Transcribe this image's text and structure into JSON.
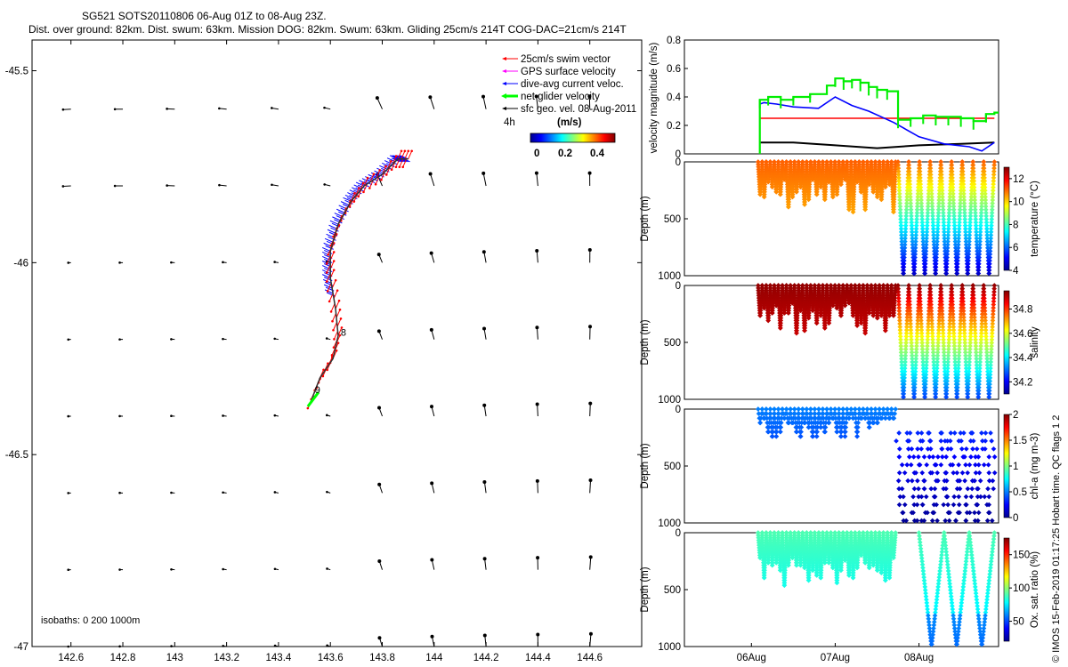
{
  "title": {
    "line1": "SG521 SOTS20110806 06-Aug 01Z to 08-Aug 23Z.",
    "line2": "Dist. over ground: 82km. Dist. swum: 63km. Mission DOG: 82km. Swum: 63km. Gliding 25cm/s 214T COG-DAC=21cm/s 214T"
  },
  "side_label": "© IMOS 15-Feb-2019 01:17:25 Hobart time. QC flags 1  2",
  "colors": {
    "swim": "#ff0000",
    "gps": "#ff00ff",
    "dac": "#0000ff",
    "net": "#00ff00",
    "sfc": "#000000"
  },
  "chart_data": [
    {
      "type": "scatter",
      "name": "map",
      "xlim": [
        142.45,
        144.8
      ],
      "ylim": [
        -47,
        -45.42
      ],
      "xticks": [
        142.6,
        142.8,
        143,
        143.2,
        143.4,
        143.6,
        143.8,
        144,
        144.2,
        144.4,
        144.6
      ],
      "xtick_labels": [
        "142.6",
        "142.8",
        "143",
        "143.2",
        "143.4",
        "143.6",
        "143.8",
        "144",
        "144.2",
        "144.4",
        "144.6"
      ],
      "yticks": [
        -45.5,
        -46,
        -46.5,
        -47
      ],
      "ytick_labels": [
        "-45.5",
        "-46",
        "-46.5",
        "-47"
      ],
      "legend": {
        "position": "top-right",
        "entries": [
          "25cm/s swim vector",
          "GPS surface velocity",
          "dive-avg current veloc.",
          "net glider velocity",
          "sfc geo. vel. 08-Aug-2011"
        ],
        "scale_label": "4h",
        "colorbar_title": "(m/s)",
        "colorbar_ticks": [
          "0",
          "0.2",
          "0.4"
        ],
        "colorbar_range": [
          0,
          0.5
        ]
      },
      "isobaths_label": "isobaths: 0   200  1000m",
      "track_labels": [
        {
          "text": "8",
          "lon": 143.64,
          "lat": -46.19
        },
        {
          "text": "9",
          "lon": 143.54,
          "lat": -46.34
        }
      ],
      "track": [
        {
          "lon": 143.52,
          "lat": -46.37
        },
        {
          "lon": 143.56,
          "lat": -46.3
        },
        {
          "lon": 143.61,
          "lat": -46.25
        },
        {
          "lon": 143.63,
          "lat": -46.19
        },
        {
          "lon": 143.62,
          "lat": -46.12
        },
        {
          "lon": 143.6,
          "lat": -46.04
        },
        {
          "lon": 143.6,
          "lat": -45.97
        },
        {
          "lon": 143.63,
          "lat": -45.9
        },
        {
          "lon": 143.68,
          "lat": -45.84
        },
        {
          "lon": 143.73,
          "lat": -45.8
        },
        {
          "lon": 143.8,
          "lat": -45.77
        },
        {
          "lon": 143.86,
          "lat": -45.73
        },
        {
          "lon": 143.9,
          "lat": -45.73
        }
      ],
      "grid_lons": [
        142.6,
        142.8,
        143.0,
        143.2,
        143.4,
        143.6,
        143.8,
        144.0,
        144.2,
        144.4,
        144.6
      ],
      "grid_lats": [
        -45.6,
        -45.8,
        -46.0,
        -46.2,
        -46.4,
        -46.6,
        -46.8,
        -47.0
      ]
    },
    {
      "type": "line",
      "name": "velocity",
      "ylabel": "velocity magnitude (m/s)",
      "ylim": [
        0,
        0.8
      ],
      "yticks": [
        0,
        0.2,
        0.4,
        0.6,
        0.8
      ],
      "ytick_labels": [
        "0",
        "0.2",
        "0.4",
        "0.6",
        "0.8"
      ],
      "xlim": [
        5.2,
        8.95
      ],
      "series": [
        {
          "color": "#ff0000",
          "x": [
            6.1,
            8.9
          ],
          "y": [
            0.25,
            0.25
          ]
        },
        {
          "color": "#000000",
          "x": [
            6.1,
            6.5,
            7.0,
            7.5,
            8.0,
            8.5,
            8.9
          ],
          "y": [
            0.08,
            0.08,
            0.06,
            0.04,
            0.06,
            0.07,
            0.08
          ]
        },
        {
          "color": "#0000ff",
          "x": [
            6.1,
            6.15,
            6.3,
            6.5,
            6.8,
            7.0,
            7.2,
            7.4,
            7.7,
            8.0,
            8.3,
            8.6,
            8.75,
            8.9
          ],
          "y": [
            0.35,
            0.36,
            0.35,
            0.33,
            0.32,
            0.4,
            0.34,
            0.3,
            0.22,
            0.12,
            0.07,
            0.05,
            0.02,
            0.08
          ]
        },
        {
          "color": "#00ee00",
          "x": [
            6.1,
            6.1,
            6.2,
            6.35,
            6.5,
            6.7,
            6.9,
            7.0,
            7.1,
            7.2,
            7.3,
            7.4,
            7.5,
            7.62,
            7.75,
            7.9,
            8.05,
            8.2,
            8.35,
            8.5,
            8.65,
            8.8,
            8.9
          ],
          "y": [
            0.0,
            0.38,
            0.4,
            0.38,
            0.4,
            0.42,
            0.48,
            0.53,
            0.51,
            0.52,
            0.5,
            0.47,
            0.45,
            0.44,
            0.24,
            0.25,
            0.27,
            0.26,
            0.26,
            0.25,
            0.23,
            0.28,
            0.29
          ]
        }
      ]
    },
    {
      "type": "scatter",
      "name": "temperature",
      "ylabel": "Depth (m)",
      "cbar_label": "temperature (°C)",
      "cbar_ticks": [
        "4",
        "6",
        "8",
        "10",
        "12"
      ],
      "cbar_range": [
        4,
        13
      ],
      "ylim": [
        0,
        1000
      ],
      "yticks": [
        "0",
        "500",
        "1000"
      ],
      "profiles": {
        "shallow_end": 7.7,
        "shallow_max": 420,
        "shallow_min_color": 0.78,
        "deep_max": 1000,
        "deep_start": 7.75
      }
    },
    {
      "type": "scatter",
      "name": "salinity",
      "ylabel": "Depth (m)",
      "cbar_label": "salinity",
      "cbar_ticks": [
        "34.2",
        "34.4",
        "34.6",
        "34.8"
      ],
      "cbar_range": [
        34.1,
        34.95
      ],
      "ylim": [
        0,
        1000
      ],
      "yticks": [
        "0",
        "500",
        "1000"
      ]
    },
    {
      "type": "scatter",
      "name": "chla",
      "ylabel": "Depth (m)",
      "cbar_label": "chl-a (mg m-3)",
      "cbar_ticks": [
        "0",
        "0.5",
        "1",
        "1.5",
        "2"
      ],
      "cbar_range": [
        0,
        2
      ],
      "ylim": [
        0,
        1000
      ],
      "yticks": [
        "0",
        "500",
        "1000"
      ]
    },
    {
      "type": "scatter",
      "name": "oxygen",
      "ylabel": "Depth (m)",
      "cbar_label": "Ox. sat. ratio (%)",
      "cbar_ticks": [
        "50",
        "100",
        "150"
      ],
      "cbar_range": [
        20,
        175
      ],
      "ylim": [
        0,
        1000
      ],
      "yticks": [
        "0",
        "500",
        "1000"
      ],
      "xticks": [
        6,
        7,
        8
      ],
      "xtick_labels": [
        "06Aug",
        "07Aug",
        "08Aug"
      ]
    }
  ]
}
